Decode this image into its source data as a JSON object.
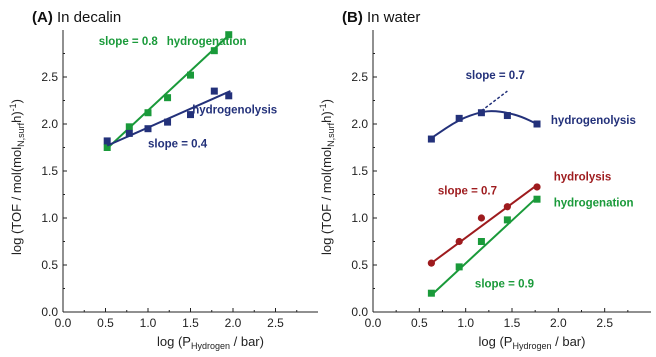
{
  "chart_data": [
    {
      "type": "scatter",
      "panel_label": "(A)",
      "title": "In decalin",
      "xlabel": {
        "prefix": "log (P",
        "sub": "Hydrogen",
        "suffix": " / bar)"
      },
      "ylabel": {
        "prefix": "log (TOF / mol(mol",
        "sub": "N,surf",
        "suffix": "h)",
        "sup": "-1",
        "close": ")"
      },
      "xlim": [
        0.0,
        3.0
      ],
      "ylim": [
        0.0,
        3.0
      ],
      "xticks": [
        "0.0",
        "0.5",
        "1.0",
        "1.5",
        "2.0",
        "2.5"
      ],
      "yticks": [
        "0.0",
        "0.5",
        "1.0",
        "1.5",
        "2.0",
        "2.5"
      ],
      "series": [
        {
          "name": "hydrogenation",
          "color": "#1a9a3a",
          "marker": "square",
          "x": [
            0.52,
            0.78,
            1.0,
            1.23,
            1.5,
            1.78,
            1.95
          ],
          "y": [
            1.75,
            1.97,
            2.12,
            2.28,
            2.52,
            2.78,
            2.95
          ],
          "fit": [
            [
              0.52,
              1.74
            ],
            [
              1.97,
              2.96
            ]
          ]
        },
        {
          "name": "hydrogenolysis",
          "color": "#23317a",
          "marker": "square",
          "x": [
            0.52,
            0.78,
            1.0,
            1.23,
            1.5,
            1.78,
            1.95
          ],
          "y": [
            1.82,
            1.9,
            1.95,
            2.02,
            2.1,
            2.35,
            2.3
          ],
          "fit": [
            [
              0.52,
              1.77
            ],
            [
              1.97,
              2.35
            ]
          ]
        }
      ],
      "annotations": [
        {
          "text": "slope = 0.8",
          "color": "#1a9a3a",
          "x": 0.42,
          "y": 2.84
        },
        {
          "text": "hydrogenation",
          "color": "#1a9a3a",
          "x": 1.22,
          "y": 2.84
        },
        {
          "text": "hydrogenolysis",
          "color": "#23317a",
          "x": 1.52,
          "y": 2.11
        },
        {
          "text": "slope = 0.4",
          "color": "#23317a",
          "x": 1.0,
          "y": 1.75
        }
      ]
    },
    {
      "type": "scatter",
      "panel_label": "(B)",
      "title": "In water",
      "xlabel": {
        "prefix": "log (P",
        "sub": "Hydrogen",
        "suffix": " / bar)"
      },
      "ylabel": {
        "prefix": "log (TOF / mol(mol",
        "sub": "N,surf",
        "suffix": "h)",
        "sup": "-1",
        "close": ")"
      },
      "xlim": [
        0.0,
        3.0
      ],
      "ylim": [
        0.0,
        3.0
      ],
      "xticks": [
        "0.0",
        "0.5",
        "1.0",
        "1.5",
        "2.0",
        "2.5"
      ],
      "yticks": [
        "0.0",
        "0.5",
        "1.0",
        "1.5",
        "2.0",
        "2.5"
      ],
      "series": [
        {
          "name": "hydrogenolysis",
          "color": "#23317a",
          "marker": "square",
          "x": [
            0.63,
            0.93,
            1.17,
            1.45,
            1.77
          ],
          "y": [
            1.84,
            2.06,
            2.12,
            2.09,
            2.0
          ],
          "fit_curve": [
            [
              0.63,
              1.85
            ],
            [
              0.93,
              2.05
            ],
            [
              1.17,
              2.13
            ],
            [
              1.3,
              2.14
            ],
            [
              1.45,
              2.12
            ],
            [
              1.6,
              2.08
            ],
            [
              1.77,
              2.0
            ]
          ],
          "dashed": [
            [
              1.17,
              2.14
            ],
            [
              1.45,
              2.35
            ]
          ]
        },
        {
          "name": "hydrolysis",
          "color": "#9e1b1e",
          "marker": "circle",
          "x": [
            0.63,
            0.93,
            1.17,
            1.45,
            1.77
          ],
          "y": [
            0.52,
            0.75,
            1.0,
            1.12,
            1.33
          ],
          "fit": [
            [
              0.63,
              0.52
            ],
            [
              1.77,
              1.35
            ]
          ]
        },
        {
          "name": "hydrogenation",
          "color": "#1a9a3a",
          "marker": "square",
          "x": [
            0.63,
            0.93,
            1.17,
            1.45,
            1.77
          ],
          "y": [
            0.2,
            0.48,
            0.75,
            0.98,
            1.2
          ],
          "fit": [
            [
              0.63,
              0.18
            ],
            [
              1.77,
              1.22
            ]
          ]
        }
      ],
      "annotations": [
        {
          "text": "slope = 0.7",
          "color": "#23317a",
          "x": 1.0,
          "y": 2.48
        },
        {
          "text": "hydrogenolysis",
          "color": "#23317a",
          "x": 1.92,
          "y": 2.0
        },
        {
          "text": "hydrolysis",
          "color": "#9e1b1e",
          "x": 1.95,
          "y": 1.4
        },
        {
          "text": "slope = 0.7",
          "color": "#9e1b1e",
          "x": 0.7,
          "y": 1.25
        },
        {
          "text": "hydrogenation",
          "color": "#1a9a3a",
          "x": 1.95,
          "y": 1.12
        },
        {
          "text": "slope = 0.9",
          "color": "#1a9a3a",
          "x": 1.1,
          "y": 0.26
        }
      ]
    }
  ]
}
